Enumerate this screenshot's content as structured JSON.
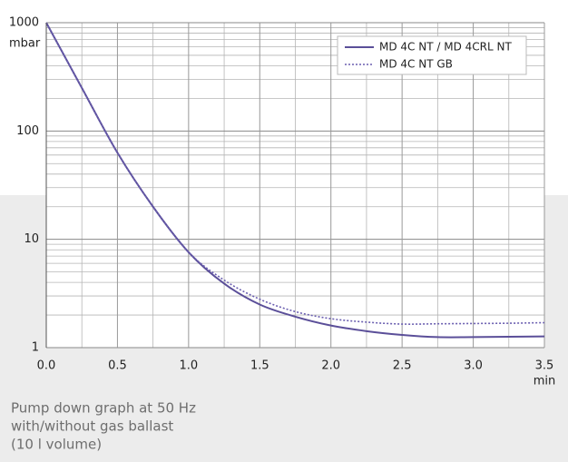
{
  "chart_data": {
    "type": "line",
    "y_label": "mbar",
    "x_label": "min",
    "x": [
      0,
      0.25,
      0.5,
      0.75,
      1,
      1.25,
      1.5,
      1.75,
      2,
      2.25,
      2.5,
      2.75,
      3,
      3.25,
      3.5
    ],
    "series": [
      {
        "name": "MD 4C NT / MD 4CRL NT",
        "color": "#5b4f99",
        "dash": "solid",
        "values": [
          1000,
          250,
          63,
          20,
          7.6,
          3.9,
          2.5,
          1.93,
          1.6,
          1.42,
          1.31,
          1.25,
          1.25,
          1.26,
          1.27
        ]
      },
      {
        "name": "MD 4C NT GB",
        "color": "#6b5fb0",
        "dash": "dotted",
        "values": [
          1000,
          250,
          63,
          20,
          7.6,
          4.2,
          2.8,
          2.15,
          1.85,
          1.72,
          1.65,
          1.66,
          1.67,
          1.68,
          1.7
        ]
      }
    ],
    "xlim": [
      0,
      3.5
    ],
    "xticks": [
      {
        "value": 0,
        "label": "0.0"
      },
      {
        "value": 0.5,
        "label": "0.5"
      },
      {
        "value": 1,
        "label": "1.0"
      },
      {
        "value": 1.5,
        "label": "1.5"
      },
      {
        "value": 2,
        "label": "2.0"
      },
      {
        "value": 2.5,
        "label": "2.5"
      },
      {
        "value": 3,
        "label": "3.0"
      },
      {
        "value": 3.5,
        "label": "3.5"
      }
    ],
    "xminor": [
      0.25,
      0.75,
      1.25,
      1.75,
      2.25,
      2.75,
      3.25
    ],
    "ylim": [
      1,
      1000
    ],
    "yscale": "log",
    "yticks": [
      1,
      10,
      100,
      1000
    ],
    "yminor": [
      2,
      3,
      4,
      5,
      6,
      7,
      8,
      9,
      20,
      30,
      40,
      50,
      60,
      70,
      80,
      90,
      200,
      300,
      400,
      500,
      600,
      700,
      800,
      900
    ],
    "grid": true,
    "legend": "upper right",
    "caption": [
      "Pump down graph at 50 Hz",
      "with/without gas ballast",
      "(10 l volume)"
    ]
  }
}
